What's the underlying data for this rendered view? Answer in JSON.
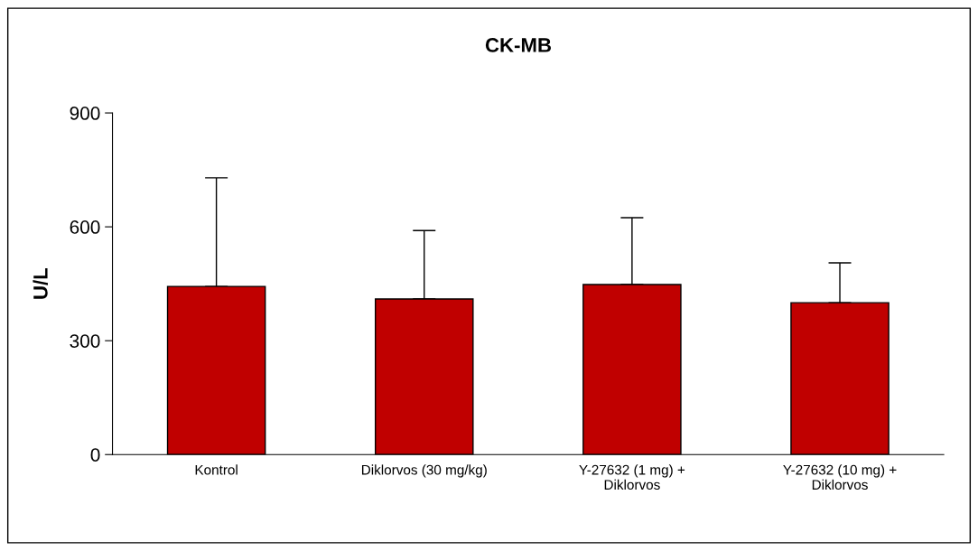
{
  "chart_data": {
    "type": "bar",
    "title": "CK-MB",
    "ylabel": "U/L",
    "categories": [
      "Kontrol",
      "Diklorvos (30 mg/kg)",
      "Y-27632 (1 mg) +\nDiklorvos",
      "Y-27632 (10 mg) +\nDiklorvos"
    ],
    "values": [
      443,
      410,
      448,
      400
    ],
    "errors": [
      [
        443,
        729
      ],
      [
        410,
        590
      ],
      [
        448,
        624
      ],
      [
        400,
        505
      ]
    ],
    "color": "#c00000",
    "ylim": [
      0,
      900
    ],
    "yticks": [
      0,
      300,
      600,
      900
    ],
    "grid": false,
    "legend": false
  }
}
